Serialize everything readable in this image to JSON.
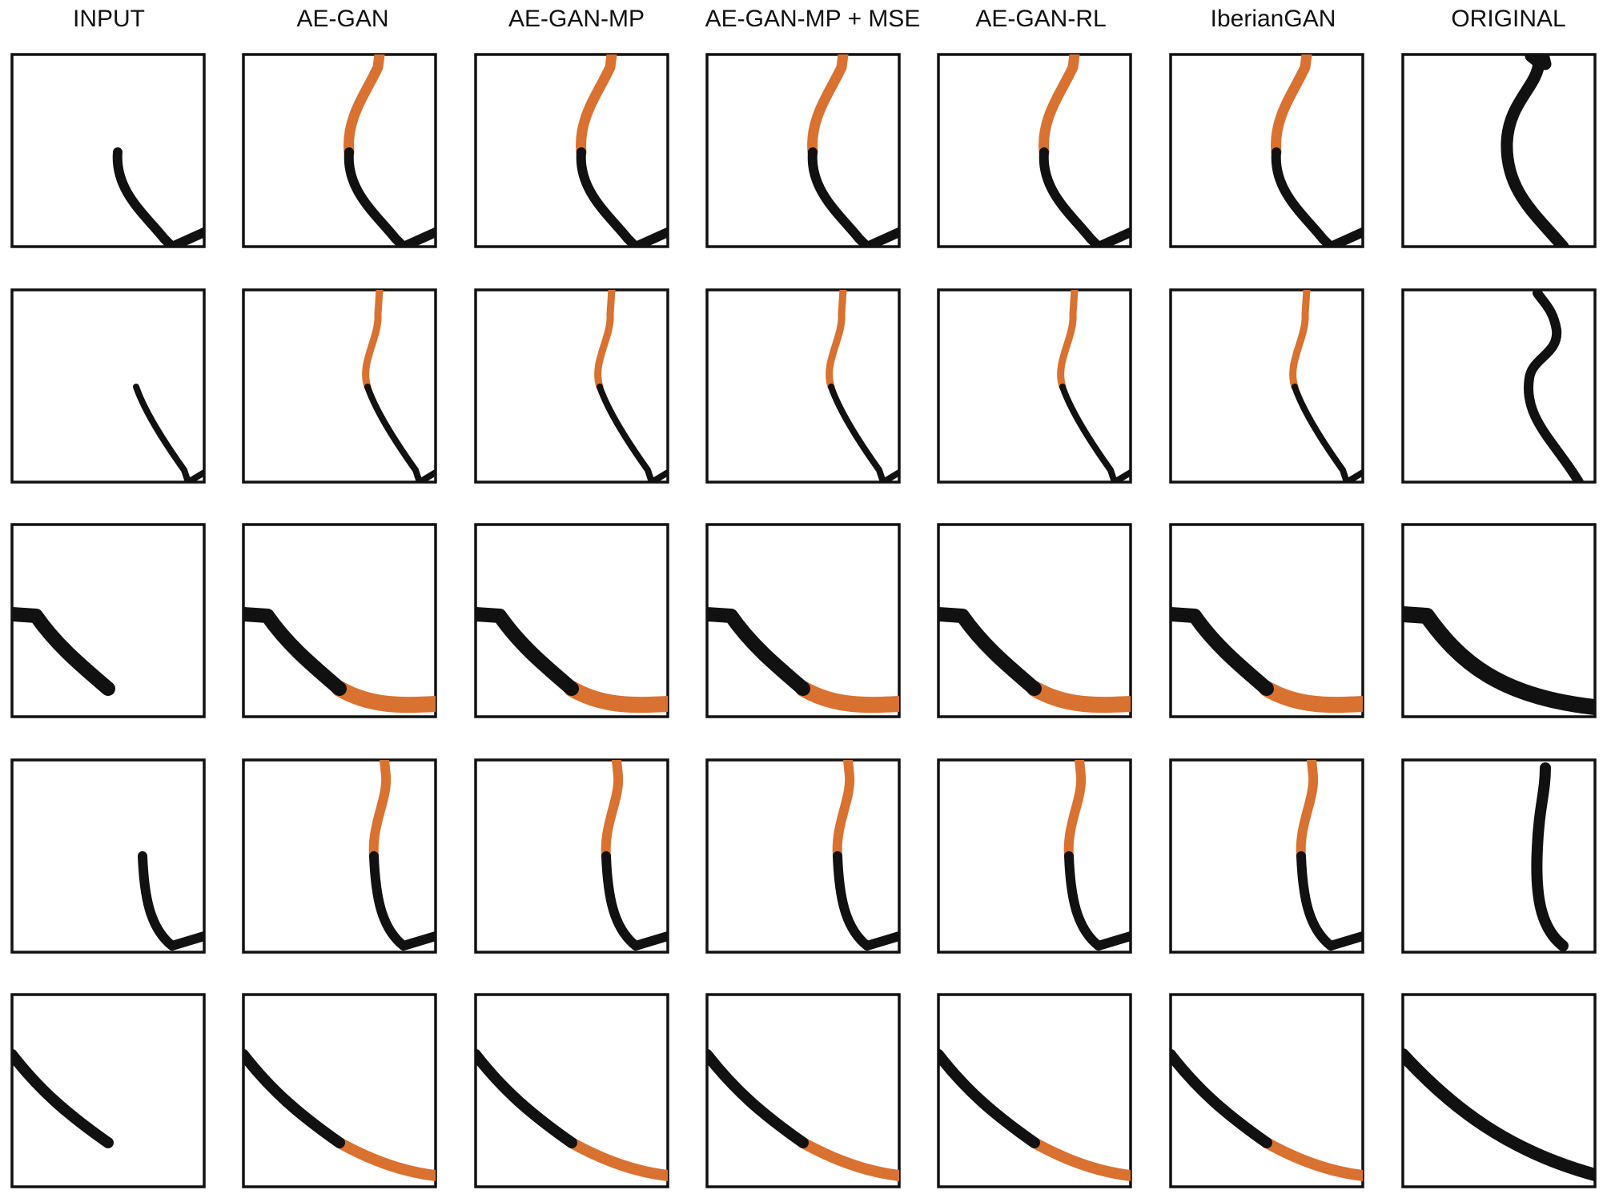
{
  "figure": {
    "columns": [
      {
        "label": "INPUT",
        "mode": "input"
      },
      {
        "label": "AE-GAN",
        "mode": "pred"
      },
      {
        "label": "AE-GAN-MP",
        "mode": "pred"
      },
      {
        "label": "AE-GAN-MP + MSE",
        "mode": "pred"
      },
      {
        "label": "AE-GAN-RL",
        "mode": "pred"
      },
      {
        "label": "IberianGAN",
        "mode": "pred"
      },
      {
        "label": "ORIGINAL",
        "mode": "original"
      }
    ],
    "rows": 5,
    "colors": {
      "input_stroke": "#111111",
      "prediction_stroke": "#d97130",
      "frame": "#111111"
    }
  }
}
